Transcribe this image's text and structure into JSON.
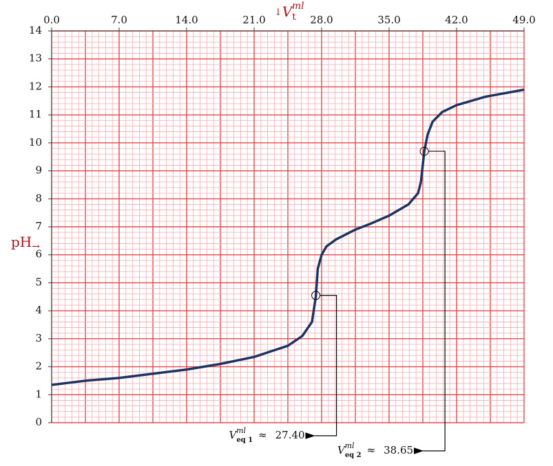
{
  "chart_data": {
    "type": "line",
    "xlabel": {
      "arrow": "↓",
      "symbol": "V",
      "sub": "t",
      "sup": "ml"
    },
    "ylabel": {
      "text": "pH",
      "arrow": "→"
    },
    "xlim": [
      0,
      49
    ],
    "ylim": [
      0,
      14
    ],
    "xticks": [
      {
        "value": 0,
        "label": "0.0"
      },
      {
        "value": 7,
        "label": "7.0"
      },
      {
        "value": 14,
        "label": "14.0"
      },
      {
        "value": 21,
        "label": "21.0"
      },
      {
        "value": 28,
        "label": "28.0"
      },
      {
        "value": 35,
        "label": "35.0"
      },
      {
        "value": 42,
        "label": "42.0"
      },
      {
        "value": 49,
        "label": "49.0"
      }
    ],
    "yticks": [
      0,
      1,
      2,
      3,
      4,
      5,
      6,
      7,
      8,
      9,
      10,
      11,
      12,
      13,
      14
    ],
    "grid": true,
    "minor_grid": true,
    "grid_color": "#e8464a",
    "minor_grid_color": "#f6a9b0",
    "series": [
      {
        "color": "#1c3461",
        "x": [
          0,
          3.5,
          7,
          10.5,
          14,
          17.5,
          21,
          24.5,
          26,
          27,
          27.4,
          27.6,
          28,
          28.5,
          29.5,
          31.5,
          33,
          35,
          37,
          38,
          38.3,
          38.65,
          39,
          39.5,
          40.5,
          42,
          45,
          49
        ],
        "values": [
          1.35,
          1.5,
          1.6,
          1.75,
          1.9,
          2.1,
          2.35,
          2.75,
          3.1,
          3.6,
          4.5,
          5.5,
          6.0,
          6.3,
          6.55,
          6.9,
          7.1,
          7.4,
          7.8,
          8.2,
          8.6,
          9.7,
          10.3,
          10.75,
          11.1,
          11.35,
          11.65,
          11.9
        ]
      }
    ],
    "annotations": [
      {
        "symbol": "V",
        "sub": "eq 1",
        "sup": "ml",
        "approx": "≈",
        "x": 27.4,
        "y": 4.55,
        "label": "27.40"
      },
      {
        "symbol": "V",
        "sub": "eq 2",
        "sup": "ml",
        "approx": "≈",
        "x": 38.65,
        "y": 9.7,
        "label": "38.65"
      }
    ]
  }
}
